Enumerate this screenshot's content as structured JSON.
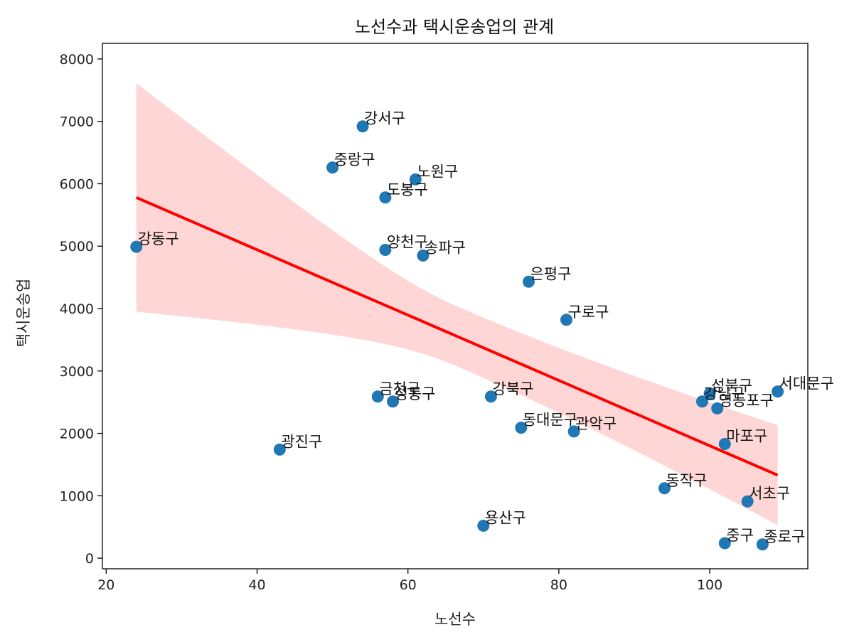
{
  "chart_data": {
    "type": "scatter",
    "title": "노선수과 택시운송업의 관계",
    "xlabel": "노선수",
    "ylabel": "택시운송업",
    "xlim": [
      19.5,
      113
    ],
    "ylim": [
      -170,
      8250
    ],
    "xticks": [
      20,
      40,
      60,
      80,
      100
    ],
    "yticks": [
      0,
      1000,
      2000,
      3000,
      4000,
      5000,
      6000,
      7000,
      8000
    ],
    "grid": false,
    "legend": "none",
    "colors": {
      "point": "#1f77b4",
      "line": "#ff0000",
      "band": "#ffd6d6",
      "axis": "#000000"
    },
    "points": [
      {
        "label": "강동구",
        "x": 24,
        "y": 4990
      },
      {
        "label": "광진구",
        "x": 43,
        "y": 1740
      },
      {
        "label": "중랑구",
        "x": 50,
        "y": 6260
      },
      {
        "label": "강서구",
        "x": 54,
        "y": 6920
      },
      {
        "label": "금천구",
        "x": 56,
        "y": 2590
      },
      {
        "label": "양천구",
        "x": 57,
        "y": 4940
      },
      {
        "label": "도봉구",
        "x": 57,
        "y": 5780
      },
      {
        "label": "성동구",
        "x": 58,
        "y": 2510
      },
      {
        "label": "노원구",
        "x": 61,
        "y": 6070
      },
      {
        "label": "송파구",
        "x": 62,
        "y": 4850
      },
      {
        "label": "용산구",
        "x": 70,
        "y": 520
      },
      {
        "label": "강북구",
        "x": 71,
        "y": 2590
      },
      {
        "label": "동대문구",
        "x": 75,
        "y": 2090
      },
      {
        "label": "은평구",
        "x": 76,
        "y": 4430
      },
      {
        "label": "구로구",
        "x": 81,
        "y": 3820
      },
      {
        "label": "관악구",
        "x": 82,
        "y": 2030
      },
      {
        "label": "동작구",
        "x": 94,
        "y": 1120
      },
      {
        "label": "강남구",
        "x": 99,
        "y": 2510
      },
      {
        "label": "성북구",
        "x": 100,
        "y": 2640
      },
      {
        "label": "영등포구",
        "x": 101,
        "y": 2400
      },
      {
        "label": "마포구",
        "x": 102,
        "y": 1830
      },
      {
        "label": "중구",
        "x": 102,
        "y": 240
      },
      {
        "label": "서초구",
        "x": 105,
        "y": 910
      },
      {
        "label": "종로구",
        "x": 107,
        "y": 220
      },
      {
        "label": "서대문구",
        "x": 109,
        "y": 2670
      }
    ],
    "regression": {
      "x": [
        24,
        109
      ],
      "y": [
        5780,
        1330
      ],
      "ci_upper": [
        7820,
        2110
      ],
      "ci_lower": [
        4160,
        510
      ]
    }
  }
}
